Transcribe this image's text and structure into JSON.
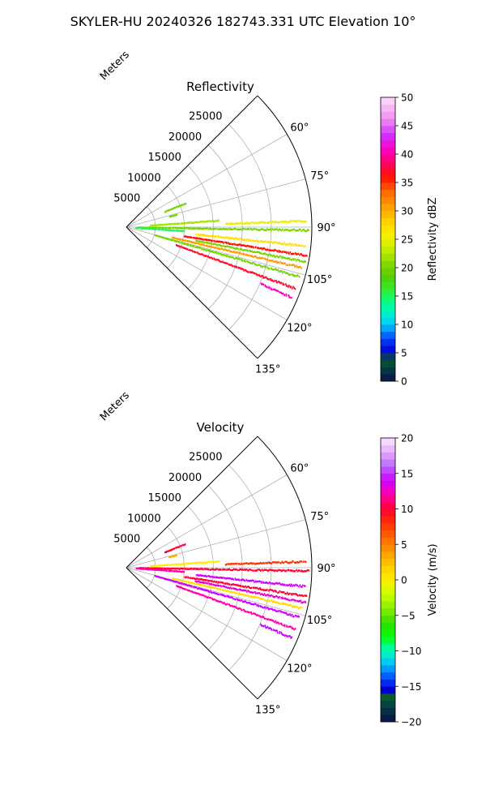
{
  "figure": {
    "suptitle": "SKYLER-HU  20240326  182743.331 UTC Elevation 10°"
  },
  "chart_data": [
    {
      "type": "polar-sector scatter",
      "title": "Reflectivity",
      "field": "reflectivity",
      "radial_axis_label": "Meters",
      "radial_ticks": [
        5000,
        10000,
        15000,
        20000,
        25000
      ],
      "radial_range": [
        0,
        32000
      ],
      "azimuth_range_deg": [
        45,
        135
      ],
      "azimuth_ticks_deg": [
        60,
        75,
        90,
        105,
        120,
        135
      ],
      "azimuth_tick_labels": [
        "60°",
        "75°",
        "90°",
        "105°",
        "120°",
        "135°"
      ],
      "grid": true,
      "colorbar": {
        "label": "Reflectivity dBZ",
        "range": [
          0,
          50
        ],
        "ticks": [
          0,
          5,
          10,
          15,
          20,
          25,
          30,
          35,
          40,
          45,
          50
        ],
        "tick_labels": [
          "0",
          "5",
          "10",
          "15",
          "20",
          "25",
          "30",
          "35",
          "40",
          "45",
          "50"
        ]
      },
      "rays": [
        {
          "azimuth_deg": 91,
          "r_start": 2000,
          "r_end": 31500,
          "value": 20
        },
        {
          "azimuth_deg": 94,
          "r_start": 1500,
          "r_end": 10000,
          "value": 15
        },
        {
          "azimuth_deg": 96,
          "r_start": 12000,
          "r_end": 31000,
          "value": 27
        },
        {
          "azimuth_deg": 99,
          "r_start": 10000,
          "r_end": 31500,
          "value": 36
        },
        {
          "azimuth_deg": 101,
          "r_start": 12000,
          "r_end": 31500,
          "value": 20
        },
        {
          "azimuth_deg": 103,
          "r_start": 8000,
          "r_end": 31000,
          "value": 31
        },
        {
          "azimuth_deg": 106,
          "r_start": 5000,
          "r_end": 31000,
          "value": 20
        },
        {
          "azimuth_deg": 110,
          "r_start": 9000,
          "r_end": 31000,
          "value": 37
        },
        {
          "azimuth_deg": 113,
          "r_start": 25000,
          "r_end": 31000,
          "value": 41
        },
        {
          "azimuth_deg": 68,
          "r_start": 7000,
          "r_end": 11000,
          "value": 20
        },
        {
          "azimuth_deg": 76,
          "r_start": 7500,
          "r_end": 9000,
          "value": 20
        },
        {
          "azimuth_deg": 86,
          "r_start": 4000,
          "r_end": 16000,
          "value": 22
        },
        {
          "azimuth_deg": 88,
          "r_start": 17000,
          "r_end": 31000,
          "value": 25
        }
      ]
    },
    {
      "type": "polar-sector scatter",
      "title": "Velocity",
      "field": "velocity",
      "radial_axis_label": "Meters",
      "radial_ticks": [
        5000,
        10000,
        15000,
        20000,
        25000
      ],
      "radial_range": [
        0,
        32000
      ],
      "azimuth_range_deg": [
        45,
        135
      ],
      "azimuth_ticks_deg": [
        60,
        75,
        90,
        105,
        120,
        135
      ],
      "azimuth_tick_labels": [
        "60°",
        "75°",
        "90°",
        "105°",
        "120°",
        "135°"
      ],
      "grid": true,
      "colorbar": {
        "label": "Velocity (m/s)",
        "range": [
          -20,
          20
        ],
        "ticks": [
          -20,
          -15,
          -10,
          -5,
          0,
          5,
          10,
          15,
          20
        ],
        "tick_labels": [
          "−20",
          "−15",
          "−10",
          "−5",
          "0",
          "5",
          "10",
          "15",
          "20"
        ]
      },
      "rays": [
        {
          "azimuth_deg": 91,
          "r_start": 2000,
          "r_end": 31500,
          "value": 10
        },
        {
          "azimuth_deg": 94,
          "r_start": 1500,
          "r_end": 10000,
          "value": 12
        },
        {
          "azimuth_deg": 96,
          "r_start": 12000,
          "r_end": 31000,
          "value": 14
        },
        {
          "azimuth_deg": 99,
          "r_start": 10000,
          "r_end": 31500,
          "value": 10
        },
        {
          "azimuth_deg": 101,
          "r_start": 12000,
          "r_end": 31500,
          "value": 13
        },
        {
          "azimuth_deg": 103,
          "r_start": 8000,
          "r_end": 31000,
          "value": 1
        },
        {
          "azimuth_deg": 106,
          "r_start": 5000,
          "r_end": 31000,
          "value": 14
        },
        {
          "azimuth_deg": 110,
          "r_start": 9000,
          "r_end": 31000,
          "value": 12
        },
        {
          "azimuth_deg": 113,
          "r_start": 25000,
          "r_end": 31000,
          "value": 14
        },
        {
          "azimuth_deg": 68,
          "r_start": 7000,
          "r_end": 11000,
          "value": 10
        },
        {
          "azimuth_deg": 76,
          "r_start": 7500,
          "r_end": 9000,
          "value": 3
        },
        {
          "azimuth_deg": 86,
          "r_start": 4000,
          "r_end": 16000,
          "value": 0
        },
        {
          "azimuth_deg": 88,
          "r_start": 17000,
          "r_end": 31000,
          "value": 8
        }
      ]
    }
  ]
}
